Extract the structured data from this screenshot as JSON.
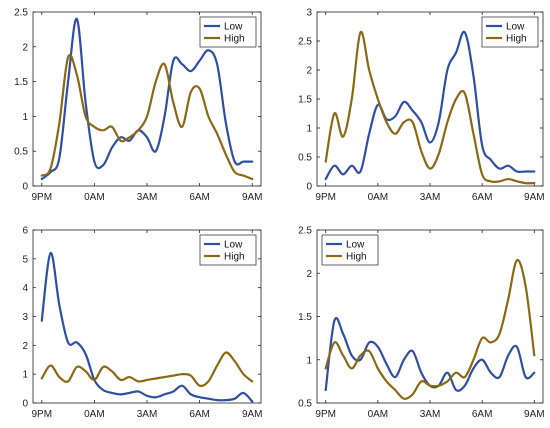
{
  "chart_data": [
    {
      "type": "line",
      "position": "top-left",
      "x": [
        21,
        21.5,
        22,
        22.5,
        23,
        23.5,
        24,
        24.5,
        25,
        25.5,
        26,
        26.5,
        27,
        27.5,
        28,
        28.5,
        29,
        29.5,
        30,
        30.5,
        31,
        31.5,
        32,
        32.5,
        33
      ],
      "xticks": [
        21,
        24,
        27,
        30,
        33
      ],
      "xticklabels": [
        "9PM",
        "0AM",
        "3AM",
        "6AM",
        "9AM"
      ],
      "ylim": [
        0,
        2.5
      ],
      "yticks": [
        0,
        0.5,
        1,
        1.5,
        2,
        2.5
      ],
      "yticklabels": [
        "0",
        "0.5",
        "1",
        "1.5",
        "2",
        "2.5"
      ],
      "legend": "top-right",
      "series": [
        {
          "name": "Low",
          "color": "#2e4fa3",
          "values": [
            0.1,
            0.2,
            0.4,
            1.5,
            2.4,
            1.2,
            0.35,
            0.3,
            0.55,
            0.7,
            0.65,
            0.8,
            0.7,
            0.5,
            1.0,
            1.8,
            1.75,
            1.65,
            1.8,
            1.95,
            1.75,
            0.9,
            0.35,
            0.35,
            0.35
          ]
        },
        {
          "name": "High",
          "color": "#8b6914",
          "values": [
            0.15,
            0.25,
            0.9,
            1.85,
            1.6,
            1.0,
            0.85,
            0.8,
            0.85,
            0.65,
            0.7,
            0.8,
            1.0,
            1.5,
            1.75,
            1.2,
            0.85,
            1.35,
            1.4,
            1.0,
            0.75,
            0.45,
            0.2,
            0.15,
            0.1
          ]
        }
      ]
    },
    {
      "type": "line",
      "position": "top-right",
      "x": [
        21,
        21.5,
        22,
        22.5,
        23,
        23.5,
        24,
        24.5,
        25,
        25.5,
        26,
        26.5,
        27,
        27.5,
        28,
        28.5,
        29,
        29.5,
        30,
        30.5,
        31,
        31.5,
        32,
        32.5,
        33
      ],
      "xticks": [
        21,
        24,
        27,
        30,
        33
      ],
      "xticklabels": [
        "9PM",
        "0AM",
        "3AM",
        "6AM",
        "9AM"
      ],
      "ylim": [
        0,
        3
      ],
      "yticks": [
        0,
        0.5,
        1,
        1.5,
        2,
        2.5,
        3
      ],
      "yticklabels": [
        "0",
        "0.5",
        "1",
        "1.5",
        "2",
        "2.5",
        "3"
      ],
      "legend": "top-right",
      "series": [
        {
          "name": "Low",
          "color": "#2e4fa3",
          "values": [
            0.12,
            0.35,
            0.2,
            0.35,
            0.25,
            0.9,
            1.4,
            1.15,
            1.2,
            1.45,
            1.3,
            1.1,
            0.75,
            1.1,
            2.0,
            2.3,
            2.65,
            1.9,
            0.7,
            0.45,
            0.3,
            0.35,
            0.25,
            0.25,
            0.25
          ]
        },
        {
          "name": "High",
          "color": "#8b6914",
          "values": [
            0.42,
            1.25,
            0.85,
            1.5,
            2.65,
            2.0,
            1.5,
            1.1,
            0.9,
            1.1,
            1.1,
            0.6,
            0.3,
            0.55,
            1.1,
            1.5,
            1.6,
            0.9,
            0.2,
            0.08,
            0.08,
            0.12,
            0.08,
            0.05,
            0.05
          ]
        }
      ]
    },
    {
      "type": "line",
      "position": "bottom-left",
      "x": [
        21,
        21.5,
        22,
        22.5,
        23,
        23.5,
        24,
        24.5,
        25,
        25.5,
        26,
        26.5,
        27,
        27.5,
        28,
        28.5,
        29,
        29.5,
        30,
        30.5,
        31,
        31.5,
        32,
        32.5,
        33
      ],
      "xticks": [
        21,
        24,
        27,
        30,
        33
      ],
      "xticklabels": [
        "9PM",
        "0AM",
        "3AM",
        "6AM",
        "9AM"
      ],
      "ylim": [
        0,
        6
      ],
      "yticks": [
        0,
        1,
        2,
        3,
        4,
        5,
        6
      ],
      "yticklabels": [
        "0",
        "1",
        "2",
        "3",
        "4",
        "5",
        "6"
      ],
      "legend": "top-right",
      "series": [
        {
          "name": "Low",
          "color": "#2e4fa3",
          "values": [
            2.85,
            5.2,
            3.4,
            2.1,
            2.1,
            1.7,
            0.8,
            0.45,
            0.35,
            0.3,
            0.35,
            0.4,
            0.25,
            0.2,
            0.3,
            0.4,
            0.6,
            0.3,
            0.2,
            0.15,
            0.1,
            0.1,
            0.15,
            0.35,
            0.05
          ]
        },
        {
          "name": "High",
          "color": "#8b6914",
          "values": [
            0.85,
            1.3,
            0.9,
            0.75,
            1.25,
            1.1,
            0.8,
            1.25,
            1.1,
            0.8,
            0.9,
            0.75,
            0.8,
            0.85,
            0.9,
            0.95,
            1.0,
            0.95,
            0.6,
            0.75,
            1.3,
            1.75,
            1.45,
            1.0,
            0.75
          ]
        }
      ]
    },
    {
      "type": "line",
      "position": "bottom-right",
      "x": [
        21,
        21.5,
        22,
        22.5,
        23,
        23.5,
        24,
        24.5,
        25,
        25.5,
        26,
        26.5,
        27,
        27.5,
        28,
        28.5,
        29,
        29.5,
        30,
        30.5,
        31,
        31.5,
        32,
        32.5,
        33
      ],
      "xticks": [
        21,
        24,
        27,
        30,
        33
      ],
      "xticklabels": [
        "9PM",
        "0AM",
        "3AM",
        "6AM",
        "9AM"
      ],
      "ylim": [
        0.5,
        2.5
      ],
      "yticks": [
        0.5,
        1,
        1.5,
        2,
        2.5
      ],
      "yticklabels": [
        "0.5",
        "1",
        "1.5",
        "2",
        "2.5"
      ],
      "legend": "top-left",
      "series": [
        {
          "name": "Low",
          "color": "#2e4fa3",
          "values": [
            0.65,
            1.45,
            1.3,
            1.05,
            1.0,
            1.2,
            1.15,
            0.95,
            0.8,
            1.0,
            1.1,
            0.85,
            0.7,
            0.7,
            0.85,
            0.65,
            0.7,
            0.9,
            1.0,
            0.85,
            0.8,
            1.05,
            1.15,
            0.8,
            0.85
          ]
        },
        {
          "name": "High",
          "color": "#8b6914",
          "values": [
            0.9,
            1.2,
            1.05,
            0.9,
            1.05,
            1.1,
            0.9,
            0.75,
            0.65,
            0.55,
            0.6,
            0.75,
            0.7,
            0.7,
            0.75,
            0.85,
            0.8,
            1.0,
            1.25,
            1.2,
            1.3,
            1.7,
            2.15,
            1.85,
            1.05
          ]
        }
      ]
    }
  ]
}
